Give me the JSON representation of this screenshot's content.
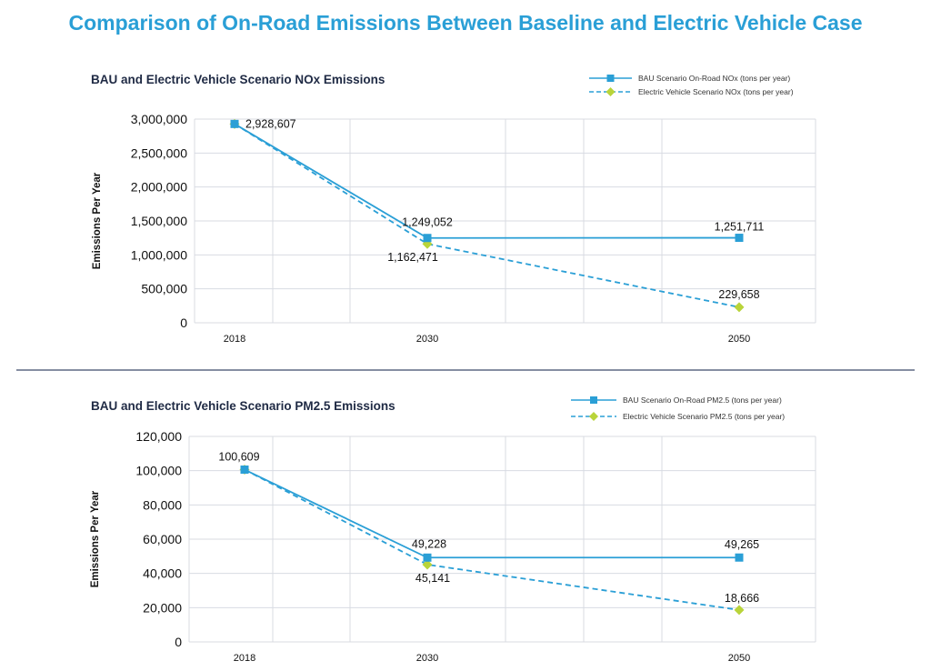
{
  "page": {
    "title": "Comparison of On-Road Emissions Between Baseline and Electric Vehicle Case"
  },
  "colors": {
    "title": "#2a9fd6",
    "bau": "#2a9fd6",
    "ev_line": "#2a9fd6",
    "ev_marker": "#b9d43a",
    "grid": "#d8dbe2",
    "divider": "#3d4a6b"
  },
  "chart_data": [
    {
      "type": "line",
      "title": "BAU and Electric Vehicle Scenario NOx Emissions",
      "xlabel": "",
      "ylabel": "Emissions Per Year",
      "categories": [
        "2018",
        "2030",
        "2050"
      ],
      "ylim": [
        0,
        3000000
      ],
      "yticks": [
        "0",
        "500,000",
        "1,000,000",
        "1,500,000",
        "2,000,000",
        "2,500,000",
        "3,000,000"
      ],
      "legend_position": "top-right",
      "grid": true,
      "series": [
        {
          "name": "BAU Scenario On-Road NOx (tons per year)",
          "style": "solid",
          "marker": "square",
          "values": [
            2928607,
            1249052,
            1251711
          ],
          "labels": [
            "2,928,607",
            "1,249,052",
            "1,251,711"
          ]
        },
        {
          "name": "Electric Vehicle Scenario NOx (tons per year)",
          "style": "dashed",
          "marker": "diamond",
          "values": [
            2928607,
            1162471,
            229658
          ],
          "labels": [
            "",
            "1,162,471",
            "229,658"
          ]
        }
      ]
    },
    {
      "type": "line",
      "title": "BAU and Electric Vehicle Scenario PM2.5 Emissions",
      "xlabel": "",
      "ylabel": "Emissions Per Year",
      "categories": [
        "2018",
        "2030",
        "2050"
      ],
      "ylim": [
        0,
        120000
      ],
      "yticks": [
        "0",
        "20,000",
        "40,000",
        "60,000",
        "80,000",
        "100,000",
        "120,000"
      ],
      "legend_position": "top-right",
      "grid": true,
      "series": [
        {
          "name": "BAU Scenario On-Road PM2.5 (tons per year)",
          "style": "solid",
          "marker": "square",
          "values": [
            100609,
            49228,
            49265
          ],
          "labels": [
            "100,609",
            "49,228",
            "49,265"
          ]
        },
        {
          "name": "Electric Vehicle Scenario PM2.5 (tons per year)",
          "style": "dashed",
          "marker": "diamond",
          "values": [
            100609,
            45141,
            18666
          ],
          "labels": [
            "",
            "45,141",
            "18,666"
          ]
        }
      ]
    }
  ]
}
